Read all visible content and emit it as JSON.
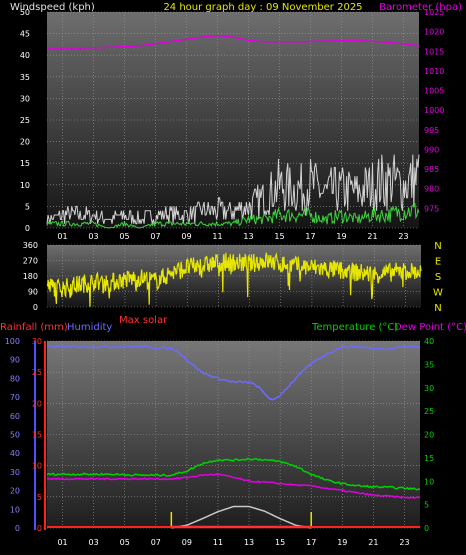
{
  "header": {
    "title_wind": "Windspeed (kph)",
    "title_date": "24 hour graph day : 09 November 2025",
    "title_baro": "Barometer (hpa)"
  },
  "colors": {
    "wind_avg": "#3cd23c",
    "wind_gust": "#d2d2d2",
    "barometer": "#e000e0",
    "direction": "#e6e600",
    "humidity": "#6b6bff",
    "temperature": "#00d200",
    "dewpoint": "#e000e0",
    "rain": "#ff2020",
    "solar": "#c8c8c8",
    "max_solar": "#ff3030"
  },
  "chart_data": [
    {
      "type": "line",
      "id": "wind_baro",
      "title": "24 hour graph day : 09 November 2025",
      "ylabel": "Windspeed (kph)",
      "ylabel_right": "Barometer (hpa)",
      "x_ticks": [
        "01",
        "03",
        "05",
        "07",
        "09",
        "11",
        "13",
        "15",
        "17",
        "19",
        "21",
        "23"
      ],
      "ylim": [
        0,
        50
      ],
      "y_ticks": [
        0,
        5,
        10,
        15,
        20,
        25,
        30,
        35,
        40,
        45,
        50
      ],
      "ylim_right": [
        970,
        1025
      ],
      "y_ticks_right": [
        975,
        980,
        985,
        990,
        995,
        1000,
        1005,
        1010,
        1015,
        1020,
        1025
      ],
      "series": [
        {
          "name": "Barometer",
          "axis": "right",
          "x": [
            0,
            2,
            4,
            6,
            8,
            10,
            11,
            12,
            13,
            14,
            16,
            18,
            20,
            22,
            23.5,
            24
          ],
          "values": [
            1015.8,
            1015.8,
            1016.0,
            1016.4,
            1017.5,
            1018.6,
            1019.0,
            1018.6,
            1017.8,
            1017.4,
            1017.4,
            1017.6,
            1017.7,
            1017.3,
            1016.7,
            1016.3
          ]
        },
        {
          "name": "Gust",
          "axis": "left",
          "x": [
            0,
            1,
            2,
            3,
            4,
            5,
            6,
            7,
            8,
            9,
            10,
            11,
            12,
            13,
            14,
            15,
            16,
            17,
            18,
            19,
            20,
            21,
            22,
            23,
            24
          ],
          "values": [
            2,
            3,
            3,
            3,
            2,
            3,
            2,
            3,
            3,
            3,
            4,
            4,
            4,
            5,
            7,
            10,
            9,
            10,
            8,
            9,
            8,
            10,
            11,
            10,
            12
          ]
        },
        {
          "name": "Average",
          "axis": "left",
          "x": [
            0,
            1,
            2,
            3,
            4,
            5,
            6,
            7,
            8,
            9,
            10,
            11,
            12,
            13,
            14,
            15,
            16,
            17,
            18,
            19,
            20,
            21,
            22,
            23,
            24
          ],
          "values": [
            1,
            1,
            1,
            1,
            0,
            1,
            0,
            1,
            1,
            1,
            1,
            1,
            1,
            2,
            2,
            3,
            3,
            3,
            2,
            3,
            2,
            3,
            3,
            4,
            4
          ]
        }
      ]
    },
    {
      "type": "line",
      "id": "direction",
      "x_ticks": [],
      "ylim": [
        0,
        360
      ],
      "y_ticks": [
        0,
        90,
        180,
        270,
        360
      ],
      "compass": [
        "N",
        "W",
        "S",
        "E",
        "N"
      ],
      "series": [
        {
          "name": "Direction",
          "x": [
            0,
            1,
            2,
            3,
            4,
            5,
            6,
            7,
            8,
            9,
            10,
            11,
            12,
            13,
            14,
            15,
            16,
            17,
            18,
            19,
            20,
            21,
            22,
            23,
            24
          ],
          "values": [
            120,
            110,
            130,
            150,
            140,
            160,
            170,
            150,
            200,
            230,
            240,
            260,
            260,
            250,
            270,
            250,
            240,
            230,
            220,
            210,
            200,
            190,
            200,
            210,
            200
          ]
        }
      ]
    },
    {
      "type": "line",
      "id": "temp_hum_rain",
      "labels": {
        "rainfall": "Rainfall (mm)",
        "humidity": "Humidity",
        "max_solar": "Max solar",
        "temperature": "Temperature (°C)",
        "dewpoint": "Dew Point (°C)"
      },
      "x_ticks": [
        "01",
        "03",
        "05",
        "07",
        "09",
        "11",
        "13",
        "15",
        "17",
        "19",
        "21",
        "23"
      ],
      "ylim_humidity": [
        0,
        100
      ],
      "y_ticks_humidity": [
        0,
        10,
        20,
        30,
        40,
        50,
        60,
        70,
        80,
        90,
        100
      ],
      "ylim_rain": [
        0,
        30
      ],
      "y_ticks_rain": [
        0,
        5,
        10,
        15,
        20,
        25,
        30
      ],
      "ylim_temp": [
        0,
        40
      ],
      "y_ticks_temp": [
        0,
        5,
        10,
        15,
        20,
        25,
        30,
        35,
        40
      ],
      "series": [
        {
          "name": "Humidity",
          "axis": "humidity",
          "x": [
            0,
            2,
            4,
            6,
            8,
            8.5,
            9,
            10,
            11,
            12,
            13,
            13.5,
            14,
            14.5,
            15,
            16,
            17,
            18,
            19,
            20,
            21,
            22,
            23,
            24
          ],
          "values": [
            97,
            97,
            97,
            97,
            96,
            94,
            90,
            83,
            80,
            78,
            78,
            76,
            72,
            68,
            71,
            80,
            88,
            93,
            97,
            97,
            96,
            96,
            97,
            97
          ]
        },
        {
          "name": "Temperature",
          "axis": "temp",
          "x": [
            0,
            2,
            4,
            6,
            8,
            9,
            10,
            11,
            12,
            13,
            14,
            15,
            16,
            17,
            18,
            19,
            20,
            21,
            22,
            23,
            24
          ],
          "values": [
            11.5,
            11.5,
            11.5,
            11.3,
            11.3,
            12.2,
            13.8,
            14.6,
            14.5,
            14.8,
            14.6,
            14.2,
            13.2,
            11.5,
            10.2,
            9.5,
            9.0,
            8.8,
            8.7,
            8.5,
            8.3
          ]
        },
        {
          "name": "Dew Point",
          "axis": "temp",
          "x": [
            0,
            2,
            4,
            6,
            8,
            9,
            10,
            11,
            12,
            13,
            14,
            15,
            16,
            17,
            18,
            19,
            20,
            21,
            22,
            23,
            24
          ],
          "values": [
            10.5,
            10.5,
            10.5,
            10.5,
            10.5,
            10.8,
            11.3,
            11.5,
            10.8,
            10.0,
            9.8,
            9.5,
            9.2,
            9.0,
            8.5,
            8.0,
            7.5,
            7.0,
            6.8,
            6.5,
            6.5
          ]
        },
        {
          "name": "Solar",
          "axis": "temp",
          "x": [
            8,
            9,
            10,
            11,
            12,
            13,
            14,
            15,
            16,
            17
          ],
          "values": [
            0,
            0.6,
            2.0,
            3.5,
            4.6,
            4.6,
            3.6,
            2.0,
            0.6,
            0
          ]
        },
        {
          "name": "Rain",
          "axis": "rain",
          "x": [
            0,
            24
          ],
          "values": [
            0,
            0
          ]
        }
      ],
      "markers_hours": [
        8.0,
        17.0
      ]
    }
  ]
}
